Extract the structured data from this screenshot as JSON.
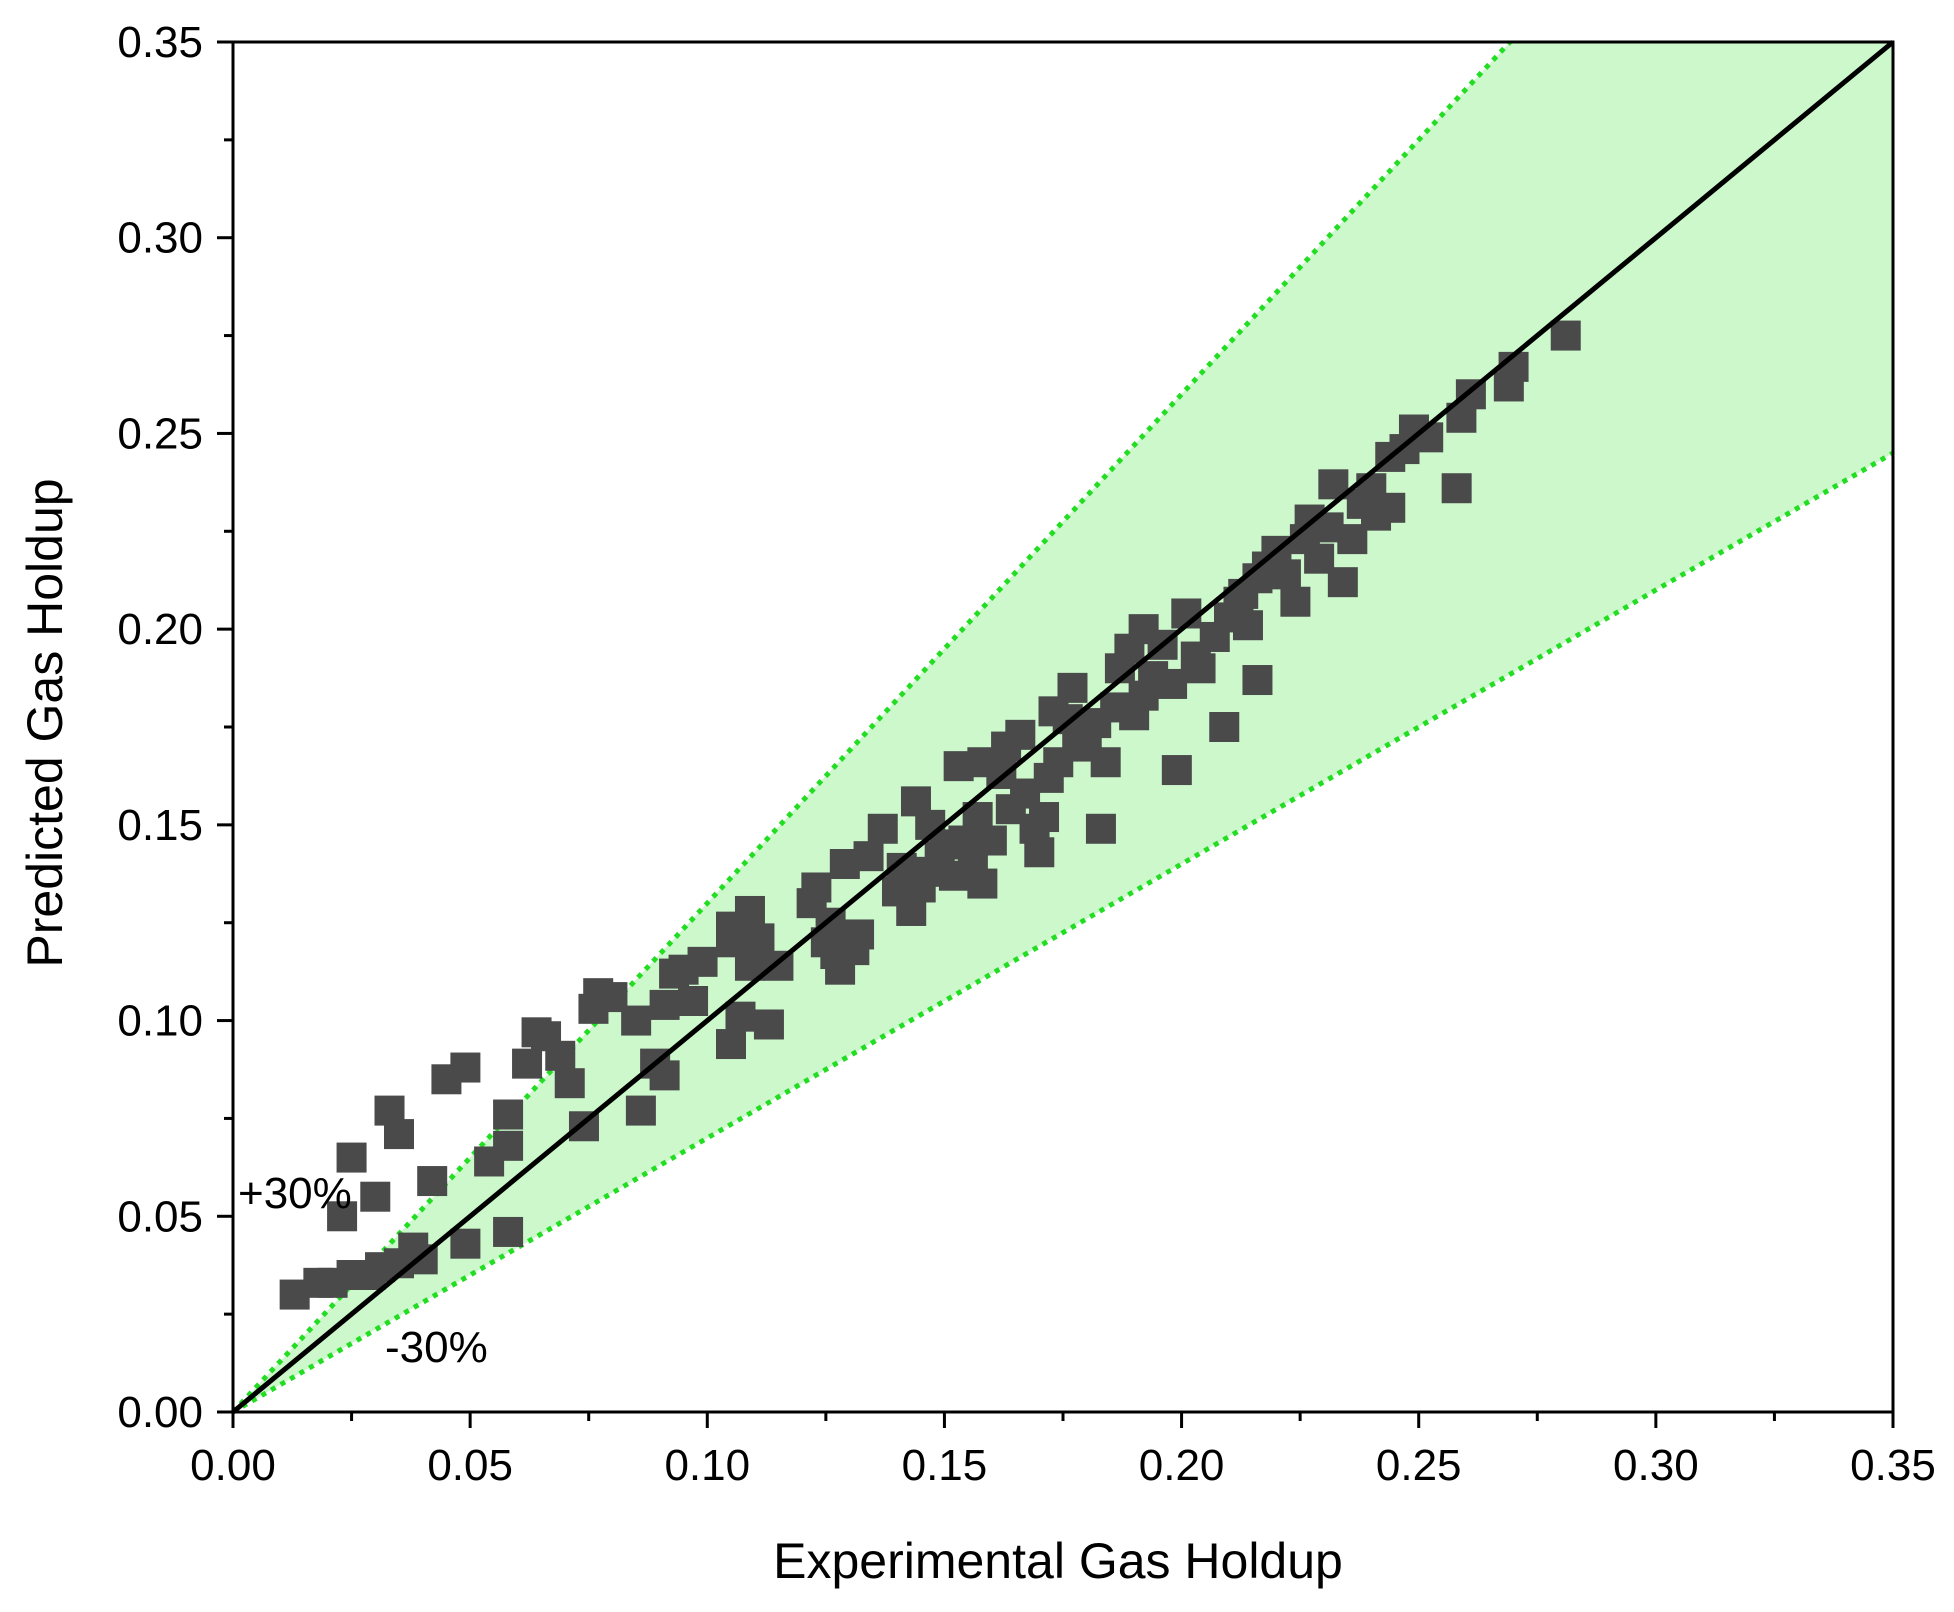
{
  "colors": {
    "band_fill": "#ccf8cc",
    "bound_lines": "#22dd22",
    "parity_line": "#000000",
    "markers": "#4a4a4a",
    "axes": "#000000"
  },
  "chart_data": {
    "type": "scatter",
    "title": "",
    "xlabel": "Experimental Gas Holdup",
    "ylabel": "Predicted Gas Holdup",
    "xlim": [
      0,
      0.35
    ],
    "ylim": [
      0,
      0.35
    ],
    "x_ticks": [
      "0.00",
      "0.05",
      "0.10",
      "0.15",
      "0.20",
      "0.25",
      "0.30",
      "0.35"
    ],
    "y_ticks": [
      "0.00",
      "0.05",
      "0.10",
      "0.15",
      "0.20",
      "0.25",
      "0.30",
      "0.35"
    ],
    "grid": false,
    "marker": "square",
    "reference_lines": [
      {
        "label": "parity",
        "slope": 1.0,
        "style": "solid"
      },
      {
        "label": "+30%",
        "slope": 1.3,
        "style": "dotted"
      },
      {
        "label": "-30%",
        "slope": 0.7,
        "style": "dotted"
      }
    ],
    "annotations": [
      "+30%",
      "-30%"
    ],
    "series": [
      {
        "points": [
          [
            0.013,
            0.03
          ],
          [
            0.018,
            0.033
          ],
          [
            0.021,
            0.033
          ],
          [
            0.025,
            0.035
          ],
          [
            0.029,
            0.035
          ],
          [
            0.031,
            0.037
          ],
          [
            0.035,
            0.038
          ],
          [
            0.04,
            0.039
          ],
          [
            0.038,
            0.042
          ],
          [
            0.049,
            0.043
          ],
          [
            0.058,
            0.046
          ],
          [
            0.023,
            0.05
          ],
          [
            0.03,
            0.055
          ],
          [
            0.042,
            0.059
          ],
          [
            0.025,
            0.065
          ],
          [
            0.054,
            0.064
          ],
          [
            0.058,
            0.068
          ],
          [
            0.035,
            0.071
          ],
          [
            0.033,
            0.077
          ],
          [
            0.058,
            0.076
          ],
          [
            0.045,
            0.085
          ],
          [
            0.049,
            0.088
          ],
          [
            0.062,
            0.089
          ],
          [
            0.071,
            0.084
          ],
          [
            0.069,
            0.091
          ],
          [
            0.064,
            0.097
          ],
          [
            0.066,
            0.096
          ],
          [
            0.074,
            0.073
          ],
          [
            0.086,
            0.077
          ],
          [
            0.091,
            0.086
          ],
          [
            0.089,
            0.089
          ],
          [
            0.085,
            0.1
          ],
          [
            0.076,
            0.103
          ],
          [
            0.08,
            0.106
          ],
          [
            0.077,
            0.107
          ],
          [
            0.091,
            0.104
          ],
          [
            0.097,
            0.105
          ],
          [
            0.093,
            0.112
          ],
          [
            0.095,
            0.113
          ],
          [
            0.099,
            0.115
          ],
          [
            0.105,
            0.094
          ],
          [
            0.107,
            0.101
          ],
          [
            0.113,
            0.099
          ],
          [
            0.105,
            0.12
          ],
          [
            0.109,
            0.114
          ],
          [
            0.11,
            0.117
          ],
          [
            0.109,
            0.128
          ],
          [
            0.111,
            0.121
          ],
          [
            0.105,
            0.124
          ],
          [
            0.115,
            0.114
          ],
          [
            0.122,
            0.13
          ],
          [
            0.123,
            0.134
          ],
          [
            0.126,
            0.125
          ],
          [
            0.125,
            0.12
          ],
          [
            0.127,
            0.117
          ],
          [
            0.128,
            0.113
          ],
          [
            0.131,
            0.118
          ],
          [
            0.132,
            0.122
          ],
          [
            0.129,
            0.14
          ],
          [
            0.134,
            0.142
          ],
          [
            0.137,
            0.149
          ],
          [
            0.141,
            0.139
          ],
          [
            0.14,
            0.133
          ],
          [
            0.143,
            0.128
          ],
          [
            0.145,
            0.134
          ],
          [
            0.147,
            0.138
          ],
          [
            0.144,
            0.156
          ],
          [
            0.147,
            0.15
          ],
          [
            0.15,
            0.145
          ],
          [
            0.149,
            0.142
          ],
          [
            0.152,
            0.137
          ],
          [
            0.156,
            0.14
          ],
          [
            0.158,
            0.135
          ],
          [
            0.154,
            0.146
          ],
          [
            0.157,
            0.152
          ],
          [
            0.16,
            0.146
          ],
          [
            0.153,
            0.165
          ],
          [
            0.158,
            0.166
          ],
          [
            0.162,
            0.163
          ],
          [
            0.164,
            0.154
          ],
          [
            0.163,
            0.17
          ],
          [
            0.166,
            0.173
          ],
          [
            0.167,
            0.158
          ],
          [
            0.169,
            0.149
          ],
          [
            0.17,
            0.143
          ],
          [
            0.171,
            0.152
          ],
          [
            0.172,
            0.162
          ],
          [
            0.174,
            0.166
          ],
          [
            0.173,
            0.179
          ],
          [
            0.176,
            0.177
          ],
          [
            0.178,
            0.17
          ],
          [
            0.177,
            0.185
          ],
          [
            0.18,
            0.172
          ],
          [
            0.183,
            0.149
          ],
          [
            0.184,
            0.166
          ],
          [
            0.182,
            0.176
          ],
          [
            0.186,
            0.18
          ],
          [
            0.187,
            0.19
          ],
          [
            0.189,
            0.195
          ],
          [
            0.19,
            0.178
          ],
          [
            0.192,
            0.183
          ],
          [
            0.194,
            0.188
          ],
          [
            0.192,
            0.2
          ],
          [
            0.196,
            0.196
          ],
          [
            0.198,
            0.186
          ],
          [
            0.199,
            0.164
          ],
          [
            0.201,
            0.204
          ],
          [
            0.203,
            0.193
          ],
          [
            0.204,
            0.19
          ],
          [
            0.207,
            0.198
          ],
          [
            0.209,
            0.175
          ],
          [
            0.21,
            0.203
          ],
          [
            0.212,
            0.207
          ],
          [
            0.213,
            0.209
          ],
          [
            0.214,
            0.201
          ],
          [
            0.216,
            0.187
          ],
          [
            0.216,
            0.213
          ],
          [
            0.218,
            0.216
          ],
          [
            0.22,
            0.22
          ],
          [
            0.222,
            0.214
          ],
          [
            0.224,
            0.207
          ],
          [
            0.226,
            0.223
          ],
          [
            0.227,
            0.228
          ],
          [
            0.229,
            0.218
          ],
          [
            0.231,
            0.226
          ],
          [
            0.232,
            0.237
          ],
          [
            0.234,
            0.212
          ],
          [
            0.236,
            0.223
          ],
          [
            0.238,
            0.232
          ],
          [
            0.24,
            0.236
          ],
          [
            0.241,
            0.229
          ],
          [
            0.244,
            0.231
          ],
          [
            0.244,
            0.244
          ],
          [
            0.247,
            0.246
          ],
          [
            0.249,
            0.251
          ],
          [
            0.252,
            0.249
          ],
          [
            0.258,
            0.236
          ],
          [
            0.259,
            0.254
          ],
          [
            0.261,
            0.26
          ],
          [
            0.269,
            0.262
          ],
          [
            0.27,
            0.267
          ],
          [
            0.281,
            0.275
          ]
        ]
      }
    ]
  }
}
